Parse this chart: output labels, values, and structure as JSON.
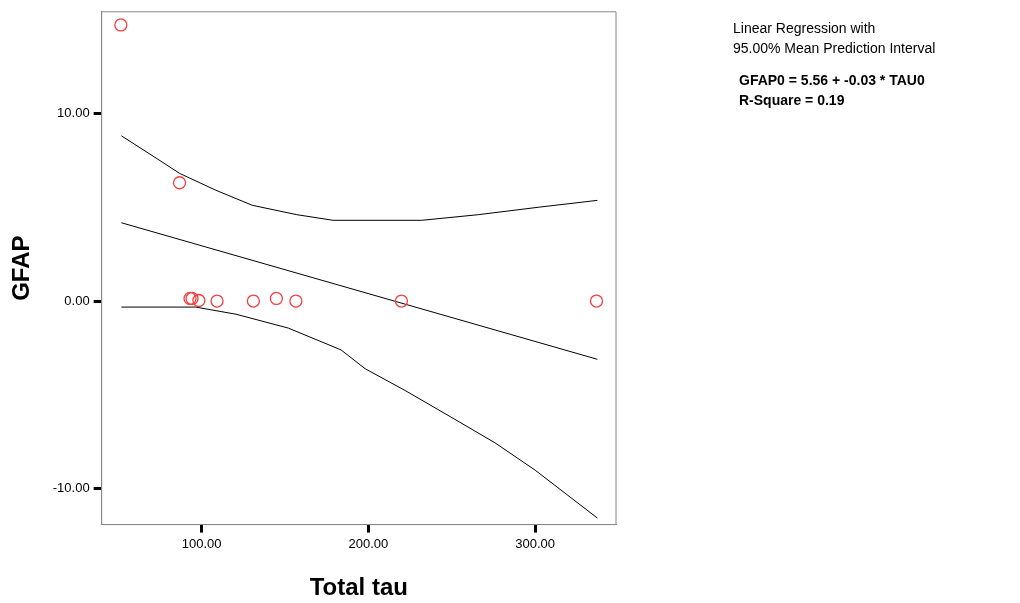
{
  "chart_data": {
    "type": "scatter",
    "xlabel": "Total tau",
    "ylabel": "GFAP",
    "annotations": [
      "Linear Regression with",
      "95.00% Mean Prediction Interval",
      "GFAP0 = 5.56 + -0.03 * TAU0",
      "R-Square = 0.19"
    ],
    "xlim": [
      40,
      348.5
    ],
    "ylim": [
      -11.9,
      15.4
    ],
    "xticks": [
      {
        "value": 100,
        "label": "100.00"
      },
      {
        "value": 200,
        "label": "200.00"
      },
      {
        "value": 300,
        "label": "300.00"
      }
    ],
    "yticks": [
      {
        "value": -10,
        "label": "-10.00"
      },
      {
        "value": 0,
        "label": "0.00"
      },
      {
        "value": 10,
        "label": "10.00"
      }
    ],
    "grid": false,
    "legend": false,
    "marker": "circle",
    "series": [
      {
        "color": "#f04040",
        "x": [
          51.5,
          86.7,
          93,
          94.2,
          98.3,
          109.2,
          131,
          144.8,
          156.5,
          219.8,
          336.8
        ],
        "values": [
          14.7,
          6.3,
          0.14,
          0.14,
          0.03,
          0,
          0,
          0.14,
          0,
          0,
          0
        ]
      },
      {
        "type": "line",
        "color": "#000000",
        "marker": "none",
        "x": [
          51.8,
          337.3
        ],
        "values": [
          4.17,
          -3.1
        ]
      },
      {
        "type": "line",
        "color": "#000000",
        "marker": "none",
        "x": [
          51.8,
          72,
          86.7,
          108.5,
          130.3,
          157,
          178.8,
          232,
          266,
          302.4,
          337.3
        ],
        "values": [
          8.8,
          7.65,
          6.8,
          5.9,
          5.1,
          4.6,
          4.3,
          4.3,
          4.6,
          5.0,
          5.36
        ]
      },
      {
        "type": "line",
        "color": "#000000",
        "marker": "none",
        "x": [
          51.8,
          96.4,
          120.6,
          152,
          183.6,
          198,
          222,
          249,
          275.8,
          300,
          337.3
        ],
        "values": [
          -0.32,
          -0.32,
          -0.7,
          -1.44,
          -2.6,
          -3.6,
          -4.76,
          -6.15,
          -7.54,
          -9.0,
          -11.55
        ]
      }
    ]
  }
}
